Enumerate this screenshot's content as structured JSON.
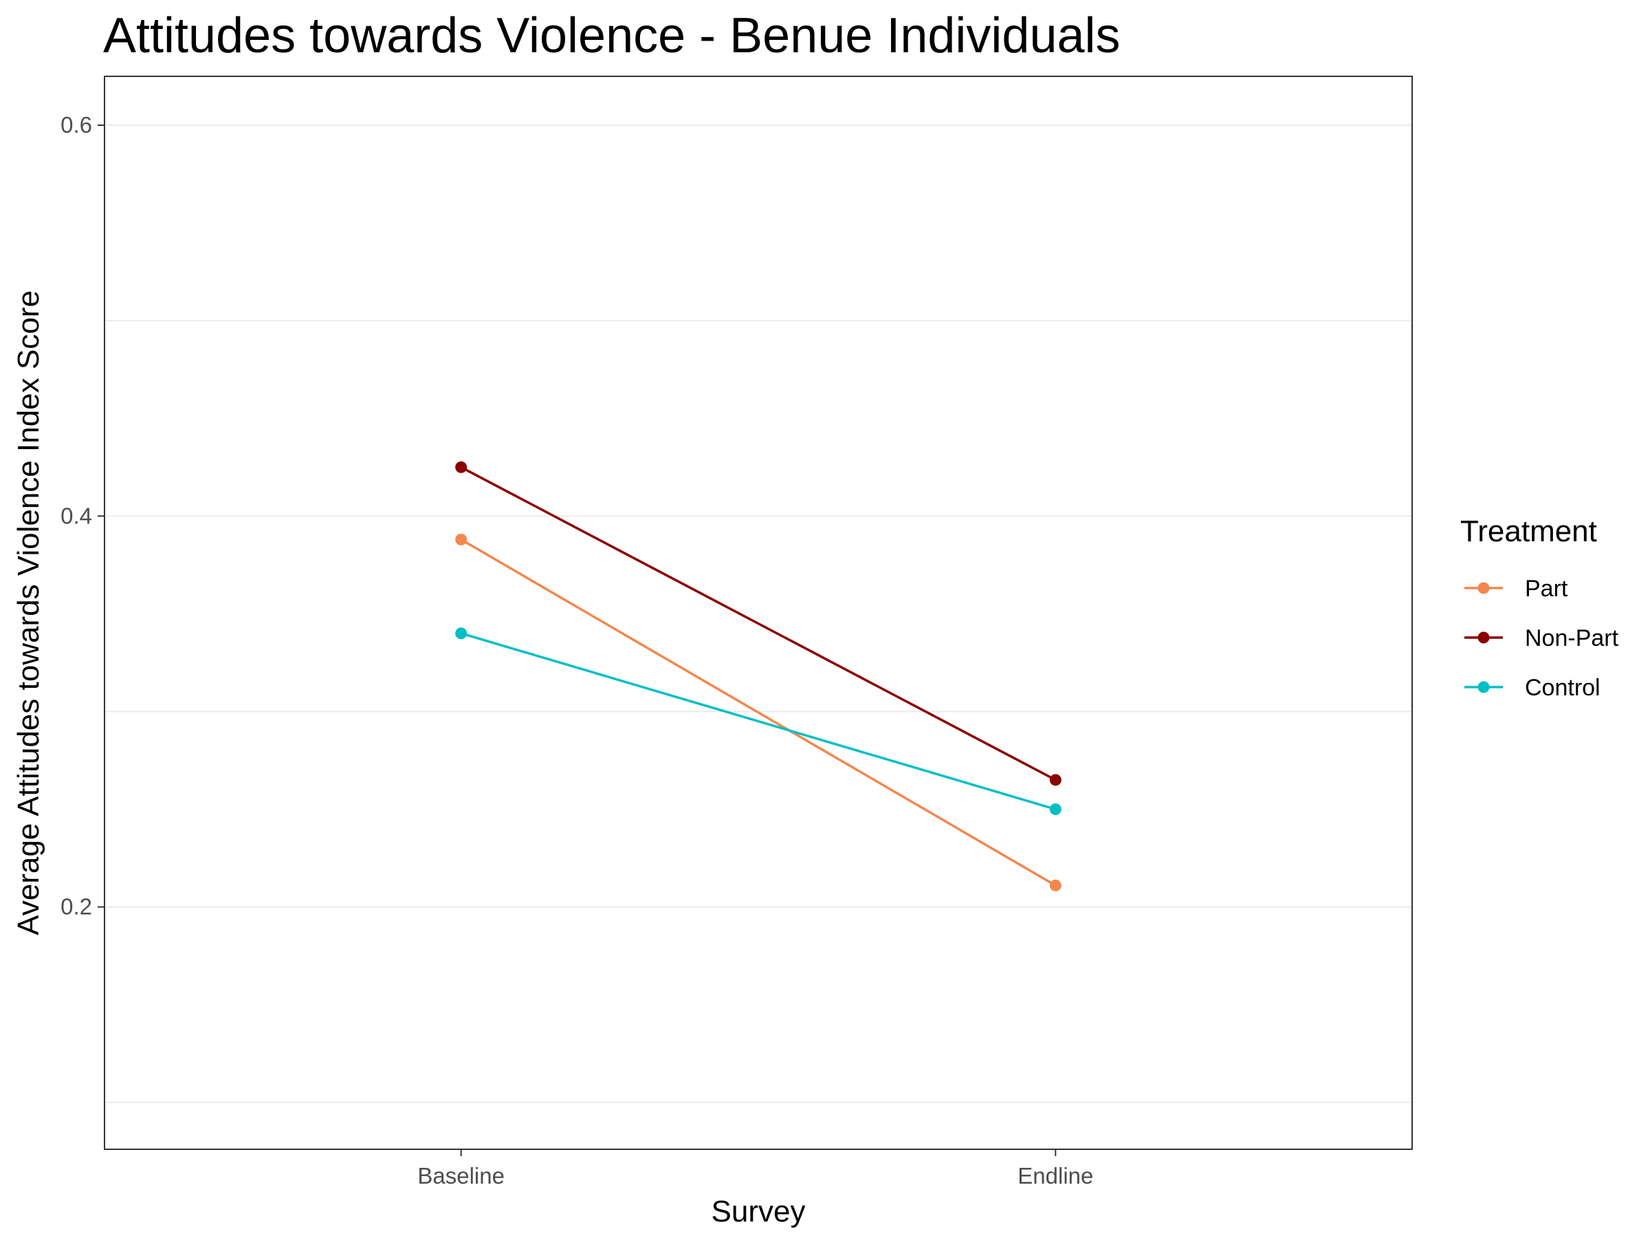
{
  "chart_data": {
    "type": "line",
    "title": "Attitudes towards Violence - Benue Individuals",
    "xlabel": "Survey",
    "ylabel": "Average Attitudes towards Violence Index Score",
    "categories": [
      "Baseline",
      "Endline"
    ],
    "ylim": [
      0.076,
      0.625
    ],
    "yticks": [
      0.2,
      0.4,
      0.6
    ],
    "ytick_labels": [
      "0.2",
      "0.4",
      "0.6"
    ],
    "minor_gridlines": [
      0.1,
      0.3,
      0.5
    ],
    "grid": true,
    "legend": {
      "title": "Treatment",
      "position": "right"
    },
    "series": [
      {
        "name": "Part",
        "color": "#f4874e",
        "values": [
          0.388,
          0.211
        ]
      },
      {
        "name": "Non-Part",
        "color": "#8b0000",
        "values": [
          0.425,
          0.265
        ]
      },
      {
        "name": "Control",
        "color": "#00bfc4",
        "values": [
          0.34,
          0.25
        ]
      }
    ]
  }
}
